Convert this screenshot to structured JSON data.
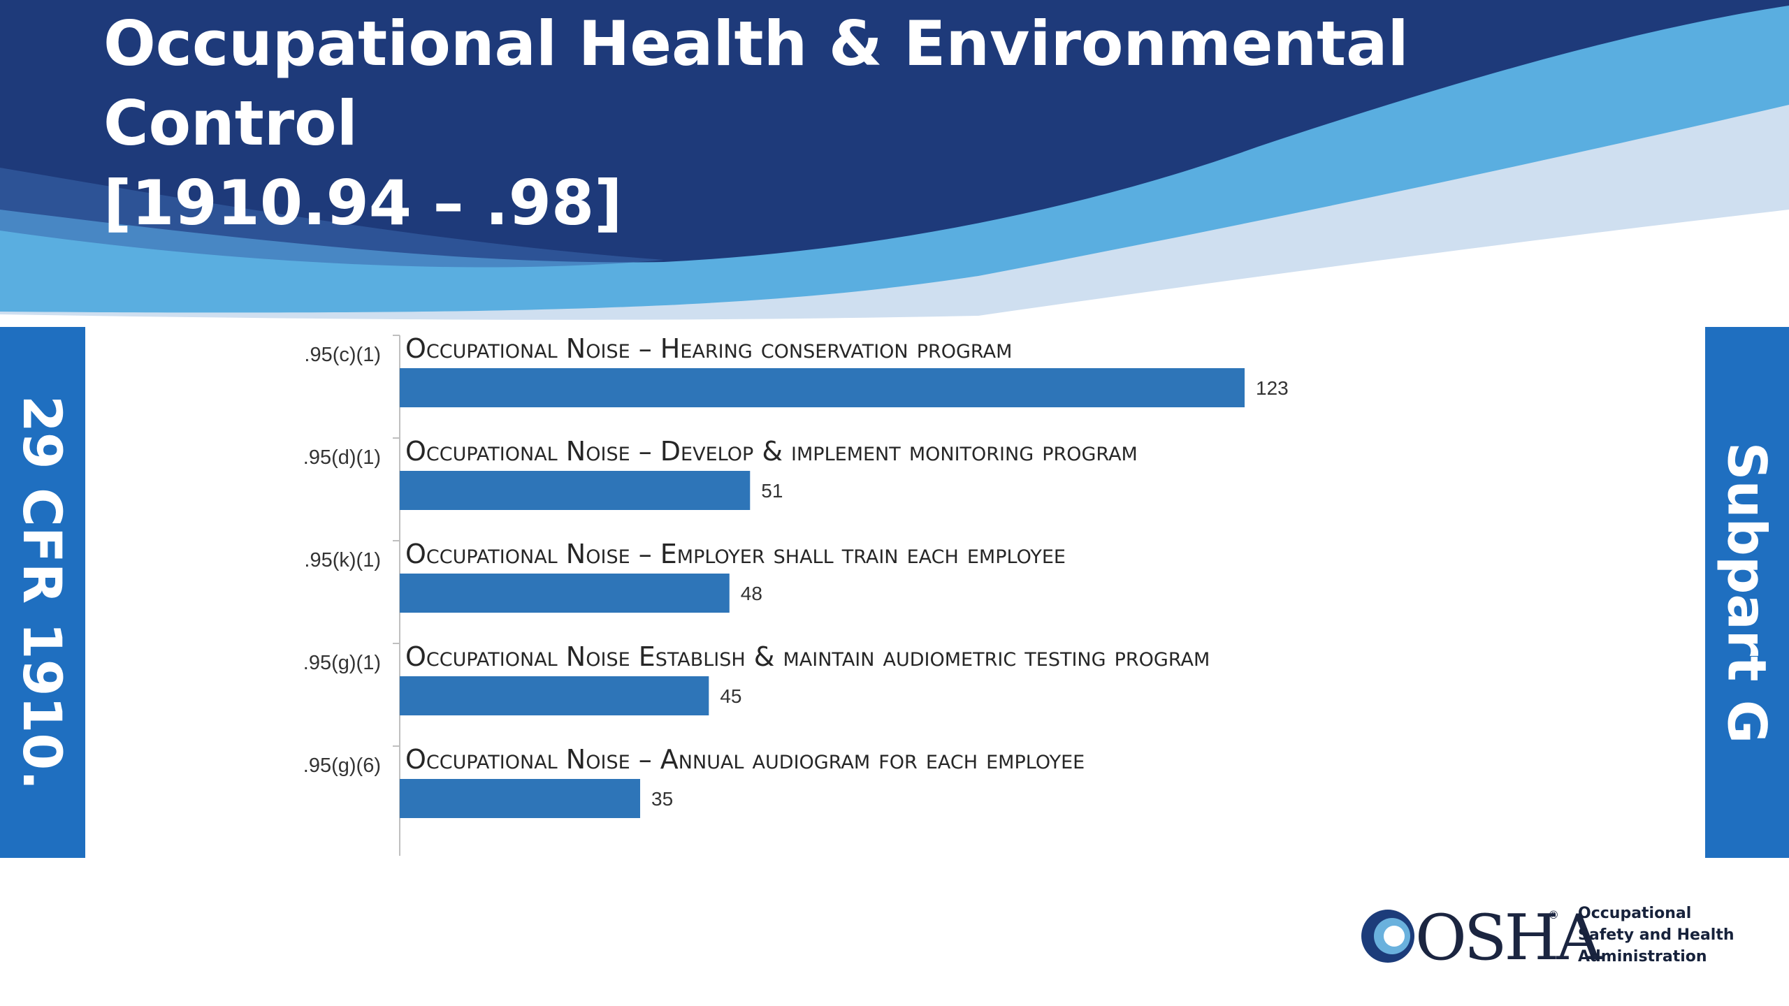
{
  "slide": {
    "title_lines": [
      "Occupational Health & Environmental",
      "Control",
      "[1910.94 – .98]"
    ],
    "left_tab": "29 CFR 1910.",
    "right_tab": "Subpart G"
  },
  "colors": {
    "header_dark": "#1e3a7a",
    "header_mid": "#5aaee0",
    "header_light": "#cfdff0",
    "tab_blue": "#1f6fc0",
    "bar_blue": "#2e75b8"
  },
  "chart_data": {
    "type": "bar",
    "orientation": "horizontal",
    "categories": [
      ".95(c)(1)",
      ".95(d)(1)",
      ".95(k)(1)",
      ".95(g)(1)",
      ".95(g)(6)"
    ],
    "descriptions": [
      "Occupational Noise – Hearing conservation program",
      "Occupational Noise – Develop & implement monitoring program",
      "Occupational Noise – Employer shall train each employee",
      "Occupational Noise Establish & maintain audiometric testing program",
      "Occupational Noise – Annual audiogram for each employee"
    ],
    "values": [
      123,
      51,
      48,
      45,
      35
    ],
    "data_labels": [
      "123",
      "51",
      "48",
      "45",
      "35"
    ],
    "xlim": [
      0,
      123
    ],
    "grid": false
  },
  "logo": {
    "wordmark": "OSHA",
    "lines": [
      "Occupational",
      "Safety and Health",
      "Administration"
    ]
  }
}
